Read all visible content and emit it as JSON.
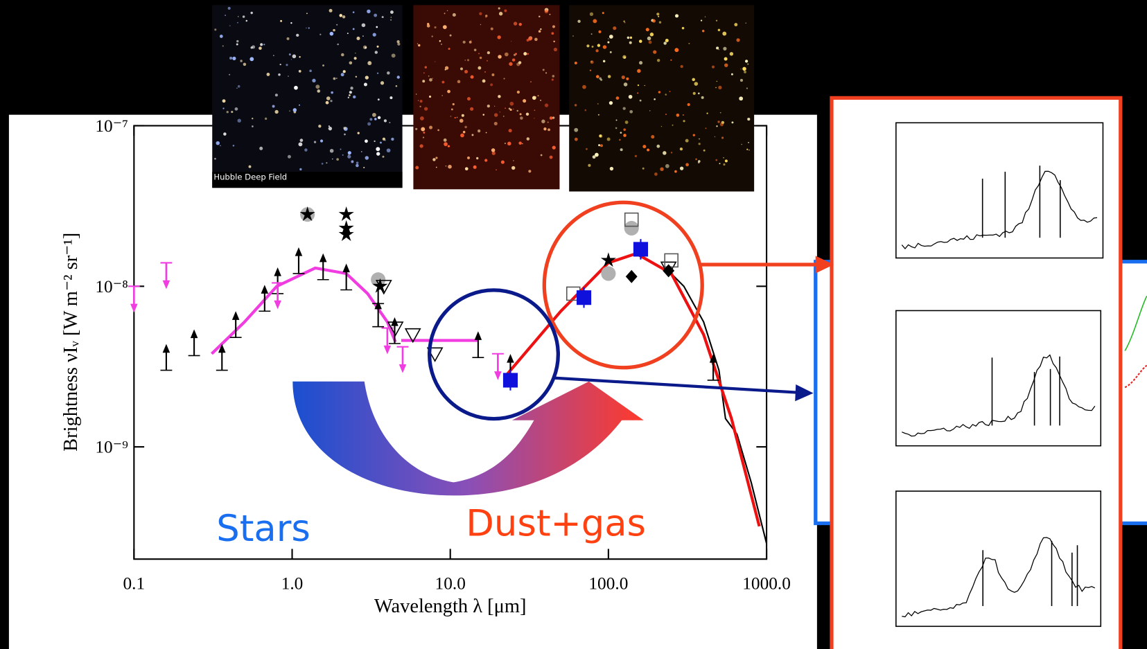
{
  "chart_data": {
    "type": "scatter",
    "x_label": "Wavelength λ [μm]",
    "y_label": "Brightness νIᵥ [W m⁻² sr⁻¹]",
    "xlim": [
      0.1,
      1000
    ],
    "ylim": [
      2e-10,
      1e-07
    ],
    "log_x": true,
    "log_y": true,
    "xticks": [
      0.1,
      {
        "value": 1,
        "label": "1.0"
      },
      {
        "value": 10,
        "label": "10.0"
      },
      {
        "value": 100,
        "label": "100.0"
      },
      {
        "value": 1000,
        "label": "1000.0"
      }
    ],
    "yticks": [
      {
        "value": 1e-09,
        "label": "10⁻⁹"
      },
      {
        "value": 1e-08,
        "label": "10⁻⁸"
      },
      {
        "value": 1e-07,
        "label": "10⁻⁷"
      }
    ],
    "annotations": [
      {
        "text": "Stars",
        "color": "#1a6ff0"
      },
      {
        "text": "Dust+gas",
        "color": "#ff4010"
      },
      {
        "text": "Hubble Deep Field",
        "color": "#ffffff"
      }
    ],
    "series": [
      {
        "style": "line",
        "color": "#f03ce0",
        "x": [
          0.31,
          0.5,
          0.8,
          1.4,
          2.2,
          3.0,
          4.0,
          4.5
        ],
        "values": [
          3.8e-09,
          6e-09,
          1e-08,
          1.3e-08,
          1.2e-08,
          9e-09,
          6e-09,
          4.5e-09
        ]
      },
      {
        "style": "line",
        "color": "#f03ce0",
        "x": [
          4.9,
          15
        ],
        "values": [
          4.6e-09,
          4.6e-09
        ]
      },
      {
        "style": "line",
        "color": "#000000",
        "x": [
          230,
          300,
          400,
          500,
          550,
          650,
          800,
          1000
        ],
        "values": [
          1.3e-08,
          1e-08,
          6e-09,
          3e-09,
          1.5e-09,
          1.2e-09,
          6e-10,
          2.5e-10
        ]
      },
      {
        "style": "line",
        "color": "#ee1111",
        "x": [
          23,
          50,
          100,
          150,
          250,
          400,
          600,
          900
        ],
        "values": [
          2.85e-09,
          7e-09,
          1.4e-08,
          1.6e-08,
          1.2e-08,
          5e-09,
          1.5e-09,
          3.2e-10
        ]
      },
      {
        "style": "arrow-up",
        "color": "#000000",
        "x": [
          0.16,
          0.24,
          0.36,
          0.44,
          0.67,
          0.81,
          1.1,
          1.57,
          2.2,
          3.5,
          3.5,
          4.45,
          15,
          24,
          460
        ],
        "values": [
          3e-09,
          3.7e-09,
          3e-09,
          4.8e-09,
          7e-09,
          9e-09,
          1.2e-08,
          1.1e-08,
          9.5e-09,
          7.8e-09,
          5.6e-09,
          4.4e-09,
          3.6e-09,
          2.6e-09,
          2.6e-09
        ]
      },
      {
        "style": "arrow-down",
        "color": "#f03ce0",
        "x": [
          0.1,
          0.16,
          0.81,
          4.0,
          5.0,
          20
        ],
        "values": [
          1e-08,
          1.4e-08,
          1.05e-08,
          5.5e-09,
          4.2e-09,
          3.8e-09
        ]
      },
      {
        "style": "circle",
        "color": "#b0b0b0",
        "x": [
          1.25,
          3.5,
          100,
          140
        ],
        "values": [
          2.8e-08,
          1.1e-08,
          1.2e-08,
          2.3e-08
        ]
      },
      {
        "style": "star",
        "color": "#000000",
        "x": [
          1.25,
          2.2,
          2.2,
          2.2,
          3.6,
          100
        ],
        "values": [
          2.8e-08,
          2.8e-08,
          2.3e-08,
          2.1e-08,
          1e-08,
          1.45e-08
        ]
      },
      {
        "style": "triangle-open",
        "color": "#000000",
        "x": [
          3.8,
          4.5,
          5.8,
          8,
          240
        ],
        "values": [
          1e-08,
          5.5e-09,
          5e-09,
          3.8e-09,
          1.3e-08
        ]
      },
      {
        "style": "square-open",
        "color": "#555555",
        "x": [
          60,
          140,
          250
        ],
        "values": [
          9e-09,
          2.6e-08,
          1.45e-08
        ]
      },
      {
        "style": "diamond",
        "color": "#000000",
        "x": [
          140,
          240
        ],
        "values": [
          1.15e-08,
          1.25e-08
        ]
      },
      {
        "style": "square",
        "color": "#1010dd",
        "x": [
          24,
          70,
          160
        ],
        "values": [
          2.6e-09,
          8.5e-09,
          1.7e-08
        ]
      }
    ]
  }
}
